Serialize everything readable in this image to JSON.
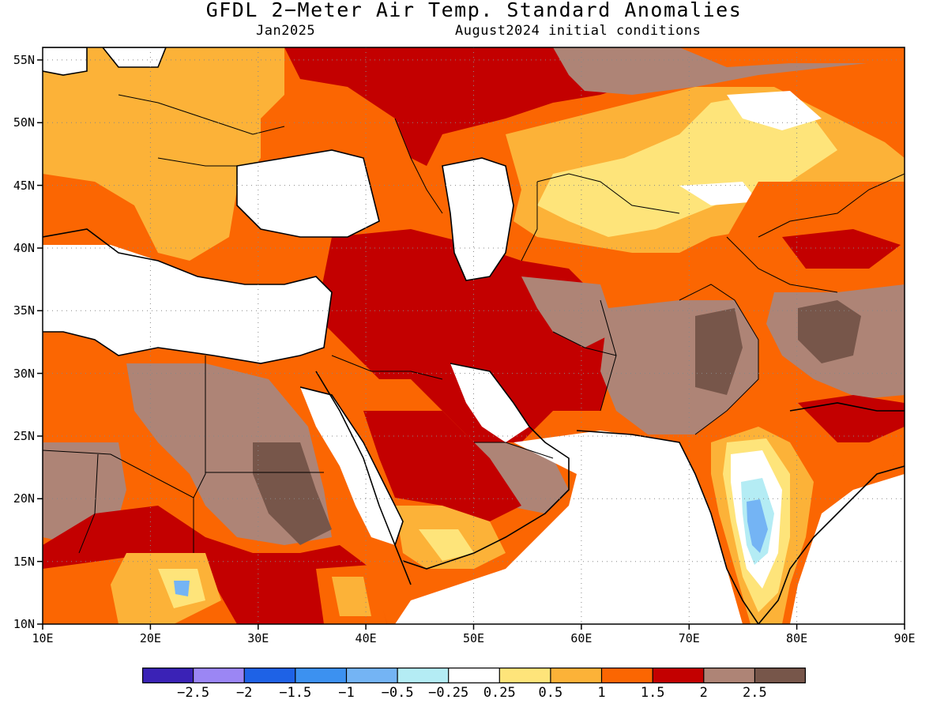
{
  "title": "GFDL 2−Meter Air Temp. Standard Anomalies",
  "subtitle_left": "Jan2025",
  "subtitle_right": "August2024 initial conditions",
  "map": {
    "lon_range": [
      10,
      90
    ],
    "lat_range": [
      10,
      56
    ],
    "x_ticks": [
      "10E",
      "20E",
      "30E",
      "40E",
      "50E",
      "60E",
      "70E",
      "80E",
      "90E"
    ],
    "y_ticks": [
      "55N",
      "50N",
      "45N",
      "40N",
      "35N",
      "30N",
      "25N",
      "20N",
      "15N",
      "10N"
    ],
    "gridlines": "dotted"
  },
  "colorbar": {
    "colors": [
      "#3a22b6",
      "#9b86f4",
      "#1e62e6",
      "#3c91f0",
      "#74b4f4",
      "#b4ecf4",
      "#ffffff",
      "#fee47a",
      "#fcb238",
      "#fb6602",
      "#c30000",
      "#ae8476",
      "#77564a"
    ],
    "labels": [
      "−2.5",
      "−2",
      "−1.5",
      "−1",
      "−0.5",
      "−0.25",
      "0.25",
      "0.5",
      "1",
      "1.5",
      "2",
      "2.5"
    ]
  }
}
